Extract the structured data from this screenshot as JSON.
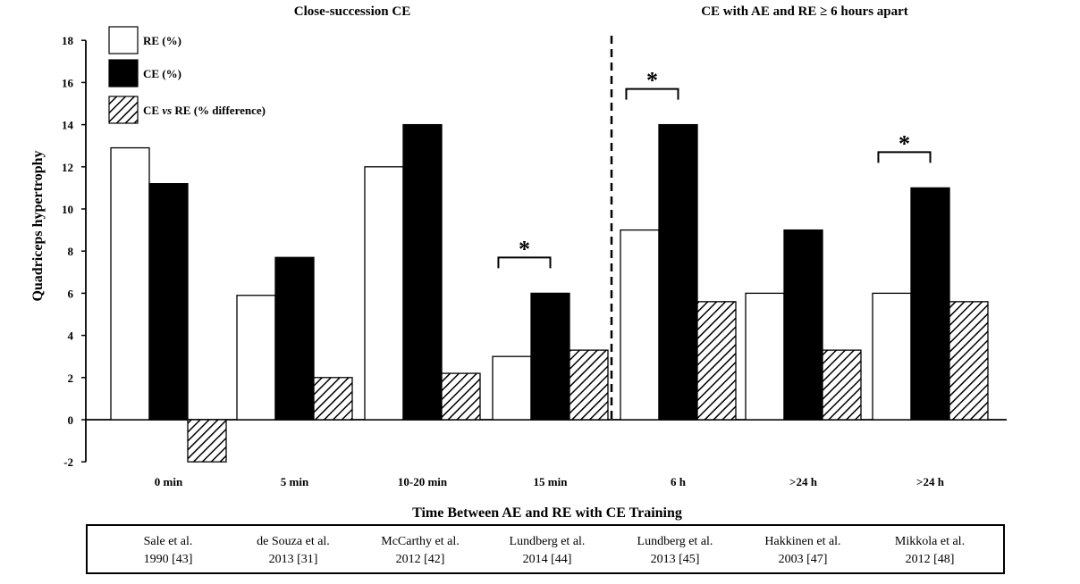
{
  "chart_data": {
    "type": "bar",
    "panel_titles": [
      "Close-succession CE",
      "CE with AE and RE ≥ 6 hours apart"
    ],
    "xlabel": "Time Between AE and RE with CE Training",
    "ylabel": "Quadriceps hypertrophy",
    "ylim": [
      -2,
      18
    ],
    "yticks": [
      -2,
      0,
      2,
      4,
      6,
      8,
      10,
      12,
      14,
      16,
      18
    ],
    "grid": false,
    "legend_position": "top-left",
    "categories": [
      "0 min",
      "5 min",
      "10-20 min",
      "15 min",
      "6 h",
      ">24 h",
      ">24 h"
    ],
    "series": [
      {
        "name": "RE (%)",
        "style": "white",
        "values": [
          12.9,
          5.9,
          12.0,
          3.0,
          9.0,
          6.0,
          6.0
        ]
      },
      {
        "name": "CE (%)",
        "style": "black",
        "values": [
          11.2,
          7.7,
          14.0,
          6.0,
          14.0,
          9.0,
          11.0
        ]
      },
      {
        "name_parts": [
          "CE ",
          "vs",
          " RE (% difference)"
        ],
        "style": "hatched",
        "values": [
          -2.0,
          2.0,
          2.2,
          3.3,
          5.6,
          3.3,
          5.6
        ]
      }
    ],
    "significance": [
      {
        "category_index": 3,
        "label": "*"
      },
      {
        "category_index": 4,
        "label": "*"
      },
      {
        "category_index": 6,
        "label": "*"
      }
    ],
    "studies": [
      [
        "Sale et al.",
        "1990 [43]"
      ],
      [
        "de Souza et al.",
        "2013 [31]"
      ],
      [
        "McCarthy et al.",
        "2012 [42]"
      ],
      [
        "Lundberg et al.",
        "2014 [44]"
      ],
      [
        "Lundberg et al.",
        "2013 [45]"
      ],
      [
        "Hakkinen et al.",
        "2003 [47]"
      ],
      [
        "Mikkola et al.",
        "2012 [48]"
      ]
    ]
  }
}
